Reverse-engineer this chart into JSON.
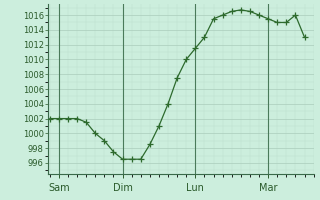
{
  "x_values": [
    0,
    0.5,
    1.0,
    1.5,
    2.0,
    2.5,
    3.0,
    3.5,
    4.0,
    4.5,
    5.0,
    5.5,
    6.0,
    6.5,
    7.0,
    7.5,
    8.0,
    8.5,
    9.0,
    9.5,
    10.0,
    10.5,
    11.0,
    11.5,
    12.0,
    12.5,
    13.0,
    13.5,
    14.0
  ],
  "y_values": [
    1002,
    1002,
    1002,
    1002,
    1001.5,
    1000,
    999,
    997.5,
    996.5,
    996.5,
    996.5,
    998.5,
    1001,
    1004,
    1007.5,
    1010,
    1011.5,
    1013,
    1015.5,
    1016,
    1016.5,
    1016.7,
    1016.5,
    1016,
    1015.5,
    1015,
    1015,
    1016,
    1013
  ],
  "x_ticks_pos": [
    0.5,
    4.0,
    8.0,
    12.0
  ],
  "x_tick_labels": [
    "Sam",
    "Dim",
    "Lun",
    "Mar"
  ],
  "x_vlines": [
    0.5,
    4.0,
    8.0,
    12.0
  ],
  "y_ticks": [
    996,
    998,
    1000,
    1002,
    1004,
    1006,
    1008,
    1010,
    1012,
    1014,
    1016
  ],
  "xlim": [
    -0.1,
    14.5
  ],
  "ylim": [
    994.5,
    1017.5
  ],
  "line_color": "#2d6a2d",
  "vline_color": "#4a7a5a",
  "bg_color": "#cceedd",
  "grid_major_color": "#aaccbb",
  "grid_minor_color": "#bbddcc",
  "spine_color": "#3a6a4a",
  "tick_label_color": "#2a5a2a",
  "ylabel_fontsize": 6,
  "xlabel_fontsize": 7
}
